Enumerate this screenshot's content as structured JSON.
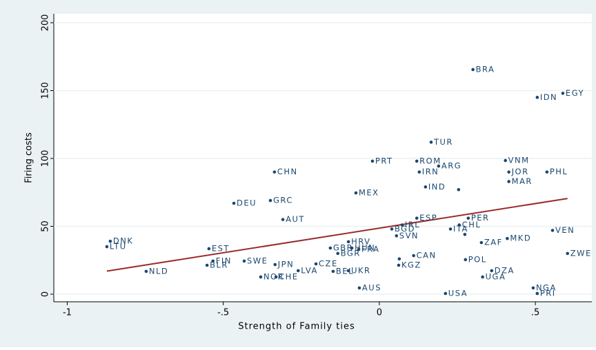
{
  "chart_data": {
    "type": "scatter",
    "x_label": "Strength of Family ties",
    "y_label": "Firing costs",
    "xlim": [
      -1.043,
      0.681
    ],
    "ylim": [
      -5.6,
      206.6
    ],
    "xticks": [
      -1,
      {
        "value": -0.5,
        "label": "-.5"
      },
      0,
      {
        "value": 0.5,
        "label": ".5"
      }
    ],
    "yticks": [
      0,
      50,
      100,
      150,
      200
    ],
    "grid": true,
    "points": {
      "color": "#1a476f",
      "labels": [
        "BRA",
        "EGY",
        "IDN",
        "TUR",
        "VNM",
        "PRT",
        "ROM",
        "ARG",
        "CHN",
        "IRN",
        "JOR",
        "PHL",
        "IND",
        null,
        "MAR",
        "MEX",
        "DEU",
        "GRC",
        "AUT",
        "ESP",
        "PER",
        "IRL",
        "CHL",
        "BGD",
        "ITA",
        "SVN",
        "VEN",
        "MKD",
        null,
        "ZAF",
        "DNK",
        "LTU",
        "EST",
        "HRV",
        "GBR",
        "HUN",
        "FRA",
        "BGR",
        "ZWE",
        "CAN",
        "FIN",
        "SWE",
        null,
        "POL",
        "BLR",
        "JPN",
        "CZE",
        "KGZ",
        "LVA",
        "BEL",
        "UKR",
        "NLD",
        "DZA",
        "NOR",
        "CHE",
        "UGA",
        "AUS",
        "NGA",
        "USA",
        "PRI"
      ],
      "x": [
        0.3,
        0.588,
        0.506,
        0.166,
        0.404,
        -0.022,
        0.12,
        0.19,
        -0.336,
        0.128,
        0.415,
        0.537,
        0.148,
        0.254,
        0.415,
        -0.075,
        -0.466,
        -0.349,
        -0.309,
        0.12,
        0.285,
        0.073,
        0.256,
        0.04,
        0.228,
        0.055,
        0.555,
        0.41,
        0.274,
        0.327,
        -0.862,
        -0.873,
        -0.546,
        -0.099,
        -0.157,
        -0.088,
        -0.066,
        -0.133,
        0.603,
        0.11,
        -0.533,
        -0.433,
        0.064,
        0.276,
        -0.552,
        -0.334,
        -0.203,
        0.062,
        -0.26,
        -0.148,
        -0.099,
        -0.747,
        0.36,
        -0.38,
        -0.331,
        0.331,
        -0.064,
        0.493,
        0.212,
        0.506
      ],
      "values": [
        165.5,
        148,
        145,
        112,
        98.5,
        98,
        98,
        94.4,
        90,
        90,
        90,
        90,
        79,
        77,
        83,
        74.6,
        67,
        69,
        55,
        56,
        56,
        51,
        51,
        48,
        48,
        43,
        47,
        41,
        44,
        38,
        39,
        35,
        33.5,
        38.6,
        34,
        34,
        33,
        30,
        30,
        28.4,
        24.4,
        24.4,
        26,
        25.4,
        21.3,
        21.8,
        22.3,
        21.3,
        17.3,
        16.8,
        17.3,
        16.8,
        17.3,
        12.7,
        12.7,
        12.7,
        4.6,
        4.6,
        0.5,
        0.5
      ]
    },
    "fit": {
      "color": "#9a2a2a",
      "x": [
        -0.873,
        0.603
      ],
      "values": [
        17,
        70.5
      ]
    }
  }
}
